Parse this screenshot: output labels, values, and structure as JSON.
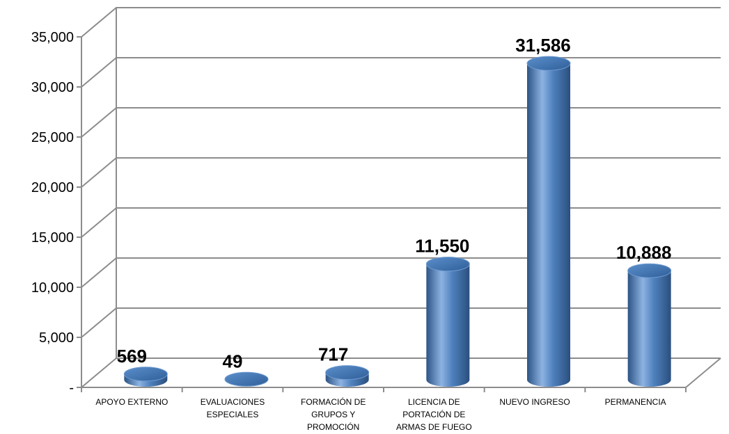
{
  "chart_data": {
    "type": "bar",
    "style": "3d-cylinder",
    "categories": [
      [
        "APOYO EXTERNO"
      ],
      [
        "EVALUACIONES",
        "ESPECIALES"
      ],
      [
        "FORMACIÓN DE",
        "GRUPOS Y",
        "PROMOCIÓN"
      ],
      [
        "LICENCIA DE",
        "PORTACIÓN DE",
        "ARMAS DE FUEGO"
      ],
      [
        "NUEVO INGRESO"
      ],
      [
        "PERMANENCIA"
      ]
    ],
    "values": [
      569,
      49,
      717,
      11550,
      31586,
      10888
    ],
    "value_labels": [
      "569",
      "49",
      "717",
      "11,550",
      "31,586",
      "10,888"
    ],
    "ylim": [
      0,
      35000
    ],
    "yticks": [
      0,
      5000,
      10000,
      15000,
      20000,
      25000,
      30000,
      35000
    ],
    "ytick_labels": [
      "-",
      "5,000",
      "10,000",
      "15,000",
      "20,000",
      "25,000",
      "30,000",
      "35,000"
    ],
    "grid": true,
    "legend": "none",
    "title": "",
    "xlabel": "",
    "ylabel": "",
    "colors": {
      "bar": "#4f81bd",
      "bar_dark": "#2c5485",
      "bar_light": "#8db3e2",
      "bar_top": "#3a6aa6",
      "grid": "#8c8c8c"
    }
  }
}
